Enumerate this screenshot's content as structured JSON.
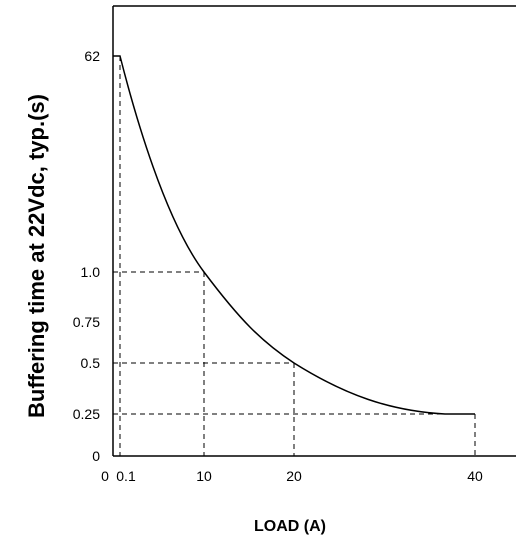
{
  "chart_data": {
    "type": "line",
    "title": "",
    "xlabel": "LOAD (A)",
    "ylabel": "Buffering time at 22Vdc, typ.(s)",
    "x_ticks": [
      "0",
      "0.1",
      "10",
      "20",
      "40"
    ],
    "y_ticks": [
      "0",
      "0.25",
      "0.5",
      "0.75",
      "1.0",
      "62"
    ],
    "series": [
      {
        "values_description_free": true,
        "points": [
          {
            "x": "0.1",
            "y": "62"
          },
          {
            "x": "10",
            "y": "1.0"
          },
          {
            "x": "20",
            "y": "0.5"
          },
          {
            "x": "40",
            "y": "0.25"
          }
        ]
      }
    ],
    "reference_points": [
      {
        "x": "10",
        "y": "1.0"
      },
      {
        "x": "20",
        "y": "0.5"
      },
      {
        "x": "40",
        "y": "0.25"
      }
    ],
    "grid": false,
    "reference_lines": "dashed",
    "colors": {
      "line": "#000000",
      "axis": "#000000"
    }
  }
}
